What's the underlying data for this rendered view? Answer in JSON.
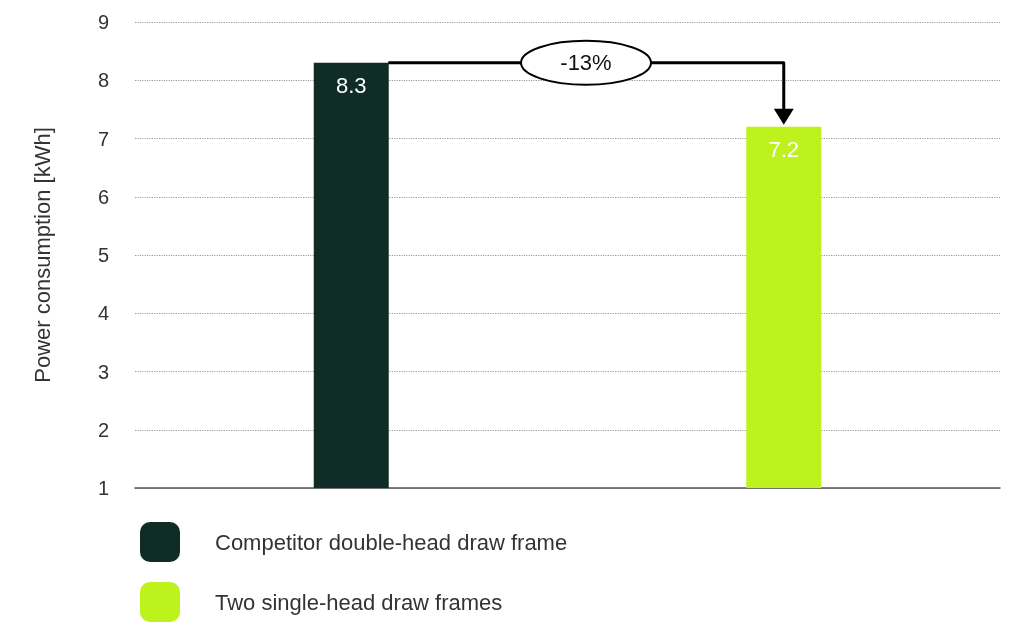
{
  "chart_data": {
    "type": "bar",
    "ylabel": "Power consumption [kWh]",
    "categories": [
      null,
      null
    ],
    "series": [
      {
        "name": "Competitor double-head draw frame",
        "color": "#0f2d26",
        "values": [
          8.3,
          null
        ]
      },
      {
        "name": "Two single-head draw frames",
        "color": "#bdf21c",
        "values": [
          null,
          7.2
        ]
      }
    ],
    "ylim": [
      1,
      9
    ],
    "yticks": [
      1,
      2,
      3,
      4,
      5,
      6,
      7,
      8,
      9
    ],
    "grid": "y",
    "legend": "bottom",
    "data_labels": true,
    "annotations": [
      "-13%"
    ]
  }
}
